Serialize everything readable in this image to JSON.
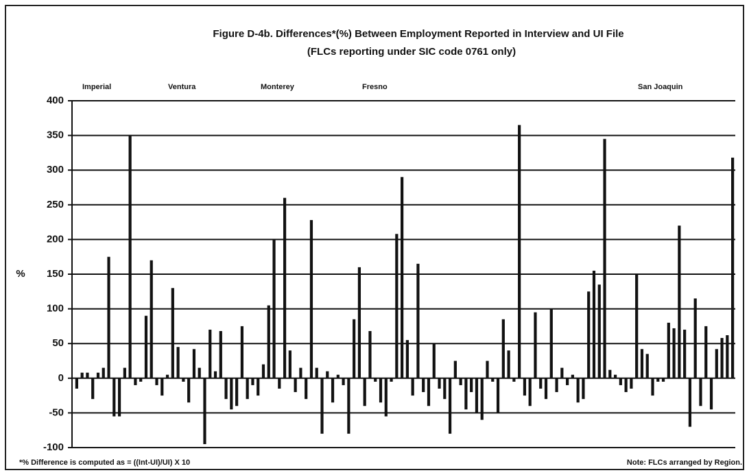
{
  "chart_data": {
    "type": "bar",
    "title": "Figure D-4b.   Differences*(%) Between Employment Reported in Interview and UI File",
    "subtitle": "(FLCs reporting under SIC code 0761 only)",
    "y_label": "%",
    "annotations": [
      "Imperial",
      "Ventura",
      "Monterey",
      "Fresno",
      "San Joaquin"
    ],
    "footnote": "*% Difference is computed as = ((Int-UI)/UI) X 10",
    "note": "Note: FLCs arranged by Region.",
    "color": "#111111",
    "grid": true,
    "ylim": [
      -100,
      400
    ],
    "yticks": [
      -100,
      -50,
      0,
      50,
      100,
      150,
      200,
      250,
      300,
      350,
      400
    ],
    "categories": [
      null,
      null,
      null,
      null,
      null,
      null,
      null,
      null,
      null,
      null,
      null,
      null,
      null,
      null,
      null,
      null,
      null,
      null,
      null,
      null,
      null,
      null,
      null,
      null,
      null,
      null,
      null,
      null,
      null,
      null,
      null,
      null,
      null,
      null,
      null,
      null,
      null,
      null,
      null,
      null,
      null,
      null,
      null,
      null,
      null,
      null,
      null,
      null,
      null,
      null,
      null,
      null,
      null,
      null,
      null,
      null,
      null,
      null,
      null,
      null,
      null,
      null,
      null,
      null,
      null,
      null,
      null,
      null,
      null,
      null,
      null,
      null,
      null,
      null,
      null,
      null,
      null,
      null,
      null,
      null,
      null,
      null,
      null,
      null,
      null,
      null,
      null,
      null,
      null,
      null,
      null,
      null,
      null,
      null,
      null,
      null,
      null,
      null,
      null,
      null,
      null,
      null,
      null,
      null,
      null,
      null,
      null,
      null,
      null,
      null,
      null,
      null,
      null,
      null,
      null,
      null,
      null,
      null,
      null,
      null,
      null,
      null,
      null,
      null
    ],
    "values": [
      -15,
      8,
      8,
      -30,
      8,
      15,
      175,
      -55,
      -55,
      15,
      350,
      -10,
      -5,
      90,
      170,
      -10,
      -25,
      5,
      130,
      45,
      -5,
      -35,
      42,
      15,
      -95,
      70,
      10,
      68,
      -30,
      -45,
      -40,
      75,
      -30,
      -10,
      -25,
      20,
      105,
      200,
      -15,
      260,
      40,
      -20,
      15,
      -30,
      228,
      15,
      -80,
      10,
      -35,
      5,
      -10,
      -80,
      85,
      160,
      -40,
      68,
      -5,
      -35,
      -55,
      -5,
      208,
      290,
      55,
      -25,
      165,
      -20,
      -40,
      50,
      -15,
      -30,
      -80,
      25,
      -10,
      -45,
      -20,
      -50,
      -60,
      25,
      -5,
      -50,
      85,
      40,
      -5,
      365,
      -25,
      -40,
      95,
      -15,
      -30,
      100,
      -20,
      15,
      -10,
      5,
      -35,
      -30,
      125,
      155,
      135,
      345,
      12,
      5,
      -10,
      -20,
      -15,
      150,
      42,
      35,
      -25,
      -5,
      -5,
      80,
      72,
      220,
      70,
      -70,
      115,
      -40,
      75,
      -45,
      42,
      58,
      62,
      318
    ]
  }
}
